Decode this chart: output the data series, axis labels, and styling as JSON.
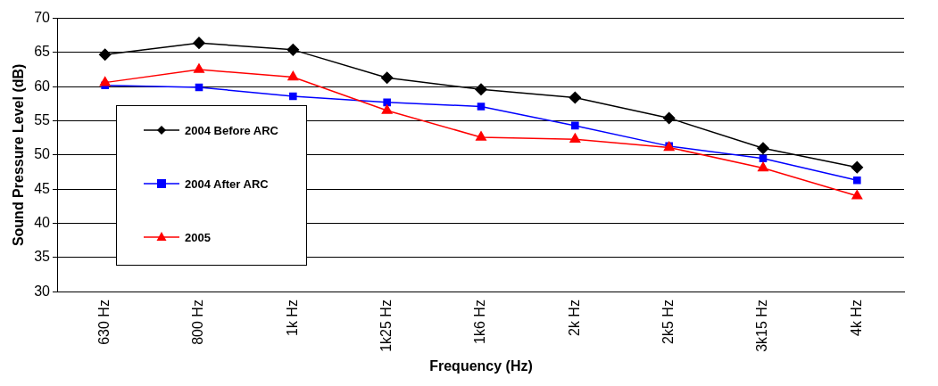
{
  "chart_data": {
    "type": "line",
    "xlabel": "Frequency (Hz)",
    "ylabel": "Sound Pressure Level (dB)",
    "categories": [
      "630 Hz",
      "800 Hz",
      "1k Hz",
      "1k25 Hz",
      "1k6 Hz",
      "2k Hz",
      "2k5 Hz",
      "3k15 Hz",
      "4k Hz"
    ],
    "ylim": [
      30,
      70
    ],
    "yticks": [
      30,
      35,
      40,
      45,
      50,
      55,
      60,
      65,
      70
    ],
    "grid": "y",
    "legend": "left",
    "line_style": "solid",
    "series": [
      {
        "name": "2004 Before ARC",
        "color": "#000000",
        "marker": "diamond",
        "values": [
          64.7,
          66.4,
          65.4,
          61.3,
          59.6,
          58.4,
          55.4,
          51.0,
          48.2
        ]
      },
      {
        "name": "2004 After ARC",
        "color": "#0000ff",
        "marker": "square",
        "values": [
          60.2,
          59.9,
          58.6,
          57.7,
          57.1,
          54.3,
          51.3,
          49.5,
          46.3
        ]
      },
      {
        "name": "2005",
        "color": "#ff0000",
        "marker": "triangle",
        "values": [
          60.6,
          62.5,
          61.4,
          56.5,
          52.6,
          52.3,
          51.1,
          48.1,
          44.0
        ]
      }
    ]
  }
}
